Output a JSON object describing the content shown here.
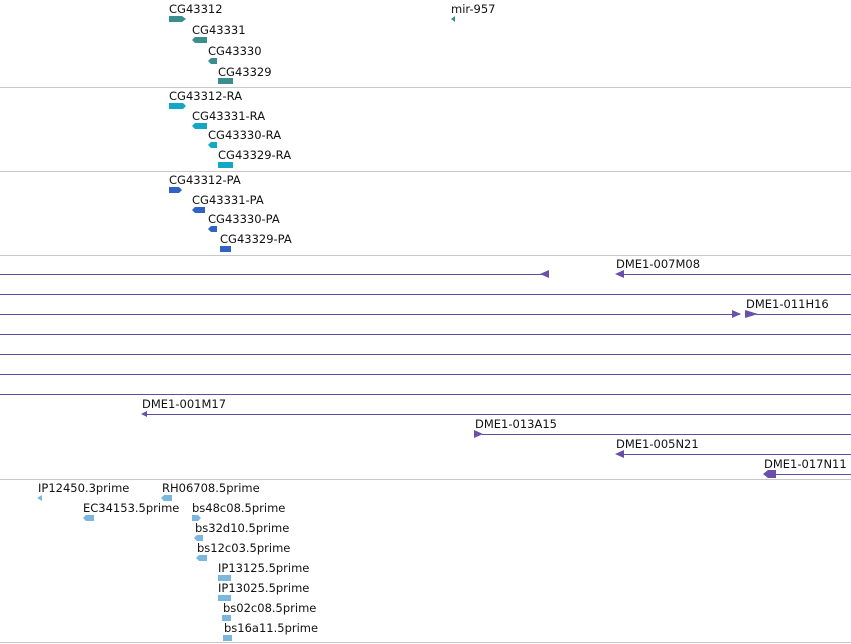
{
  "colors": {
    "gene": "#3a8f8c",
    "transcript": "#12a7c4",
    "protein": "#2f63c6",
    "clone": "#6b4fa8",
    "est": "#7bb6de",
    "separator": "#c8c8c8"
  },
  "genes": [
    "CG43312",
    "CG43331",
    "CG43330",
    "CG43329",
    "mir-957"
  ],
  "transcripts": [
    "CG43312-RA",
    "CG43331-RA",
    "CG43330-RA",
    "CG43329-RA"
  ],
  "proteins": [
    "CG43312-PA",
    "CG43331-PA",
    "CG43330-PA",
    "CG43329-PA"
  ],
  "clones": [
    "DME1-007M08",
    "DME1-011H16",
    "DME1-001M17",
    "DME1-013A15",
    "DME1-005N21",
    "DME1-017N11"
  ],
  "ests": [
    "IP12450.3prime",
    "RH06708.5prime",
    "EC34153.5prime",
    "bs48c08.5prime",
    "bs32d10.5prime",
    "bs12c03.5prime",
    "IP13125.5prime",
    "IP13025.5prime",
    "bs02c08.5prime",
    "bs16a11.5prime"
  ]
}
